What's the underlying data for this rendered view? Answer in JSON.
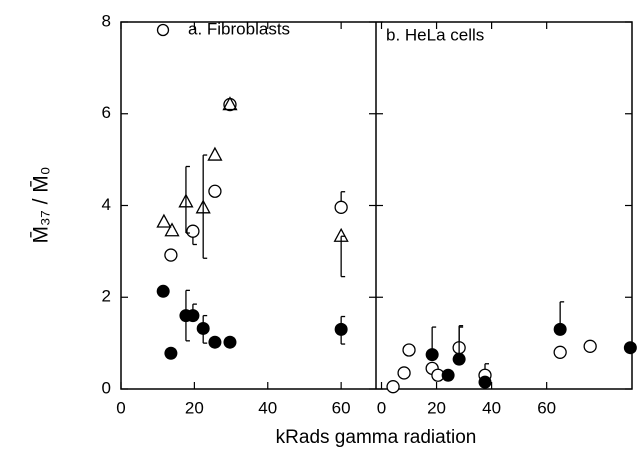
{
  "chart_data": [
    {
      "type": "scatter",
      "title": "a.  Fibroblasts",
      "xlabel": "kRads gamma radiation",
      "ylabel": "M̄₃₇ / M̄₀",
      "xlim": [
        0,
        69.5
      ],
      "xticks": [
        0,
        20,
        40,
        60
      ],
      "ylim": [
        0,
        8
      ],
      "yticks": [
        0,
        2,
        4,
        6,
        8
      ],
      "series": [
        {
          "marker": "open-circle",
          "color": "#000000",
          "x": [
            13.6,
            19.6,
            25.6,
            29.7,
            60
          ],
          "values": [
            2.92,
            3.44,
            4.31,
            6.2,
            3.96
          ],
          "errors": [
            null,
            [
              3.15,
              3.44
            ],
            null,
            null,
            [
              3.96,
              4.3
            ]
          ]
        },
        {
          "marker": "open-triangle",
          "color": "#000000",
          "x": [
            11.7,
            13.9,
            17.7,
            22.4,
            25.6,
            29.7,
            60
          ],
          "values": [
            3.64,
            3.45,
            4.08,
            3.95,
            5.1,
            6.2,
            3.33
          ],
          "errors": [
            null,
            null,
            [
              3.4,
              4.85
            ],
            [
              2.85,
              5.1
            ],
            null,
            null,
            [
              2.45,
              3.33
            ]
          ]
        },
        {
          "marker": "filled-circle",
          "color": "#000000",
          "x": [
            11.5,
            13.6,
            17.7,
            19.6,
            22.4,
            25.6,
            29.7,
            60
          ],
          "values": [
            2.13,
            0.78,
            1.6,
            1.6,
            1.32,
            1.02,
            1.02,
            1.3
          ],
          "errors": [
            null,
            null,
            [
              1.05,
              2.15
            ],
            [
              1.6,
              1.85
            ],
            [
              1.0,
              1.6
            ],
            null,
            null,
            [
              0.98,
              1.58
            ]
          ]
        }
      ]
    },
    {
      "type": "scatter",
      "title": "b.  HeLa cells",
      "xlim": [
        -2,
        91
      ],
      "xticks": [
        0,
        20,
        40,
        60
      ],
      "ylim": [
        0,
        8
      ],
      "yticks": [
        0,
        2,
        4,
        6,
        8
      ],
      "series": [
        {
          "marker": "open-circle",
          "color": "#000000",
          "x": [
            4.2,
            8.2,
            10,
            18.4,
            20.5,
            28.2,
            37.6,
            64.9,
            75.8
          ],
          "values": [
            0.05,
            0.35,
            0.85,
            0.45,
            0.3,
            0.9,
            0.3,
            0.8,
            0.93
          ],
          "errors": [
            null,
            null,
            null,
            null,
            null,
            [
              0.9,
              1.38
            ],
            [
              0.3,
              0.55
            ],
            null,
            null
          ]
        },
        {
          "marker": "filled-circle",
          "color": "#000000",
          "x": [
            18.4,
            24.2,
            28.2,
            37.6,
            64.9,
            90.4
          ],
          "values": [
            0.75,
            0.3,
            0.65,
            0.15,
            1.3,
            0.9
          ],
          "errors": [
            [
              0.75,
              1.35
            ],
            null,
            [
              0.65,
              1.35
            ],
            null,
            [
              1.3,
              1.9
            ],
            null
          ]
        }
      ]
    }
  ]
}
